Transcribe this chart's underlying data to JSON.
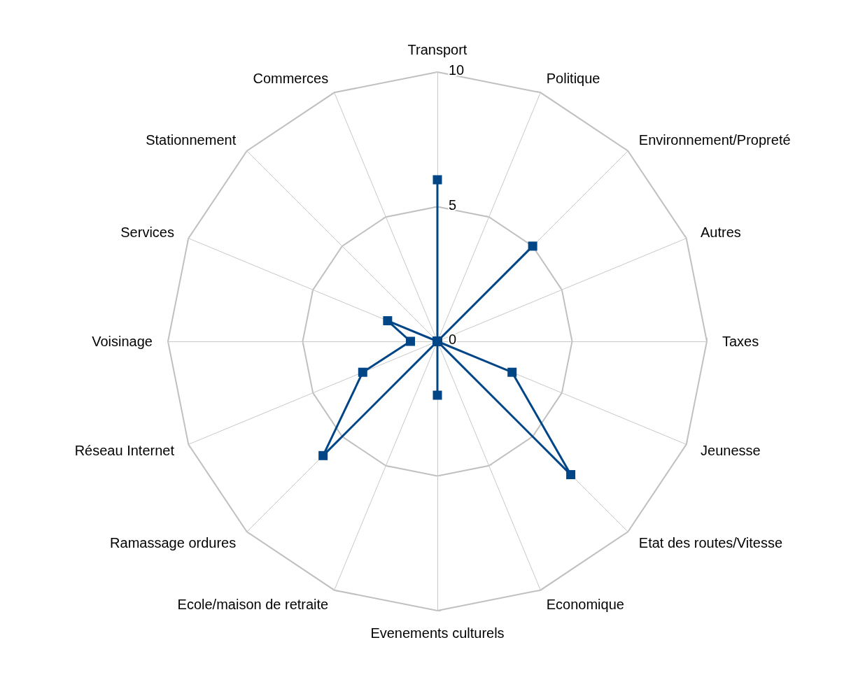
{
  "chart_data": {
    "type": "radar",
    "categories": [
      "Transport",
      "Politique",
      "Environnement/Propreté",
      "Autres",
      "Taxes",
      "Jeunesse",
      "Etat des routes/Vitesse",
      "Economique",
      "Evenements culturels",
      "Ecole/maison de retraite",
      "Ramassage ordures",
      "Réseau Internet",
      "Voisinage",
      "Services",
      "Stationnement",
      "Commerces"
    ],
    "series": [
      {
        "color": "#004586",
        "values": [
          6,
          0,
          5,
          0,
          0,
          3,
          7,
          0,
          2,
          0,
          6,
          3,
          1,
          2,
          0,
          0
        ]
      }
    ],
    "ylim": [
      0,
      10
    ],
    "yticks": [
      0,
      5,
      10
    ],
    "marker": "square"
  }
}
